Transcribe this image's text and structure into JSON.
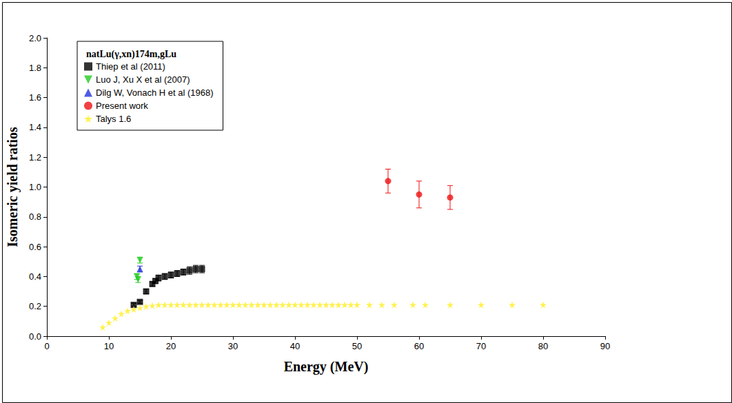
{
  "chart_data": {
    "type": "scatter",
    "legend_title": "natLu(γ,xn)174m,gLu",
    "x_label": "Energy (MeV)",
    "y_label": "Isomeric yield ratios",
    "xlim": [
      0,
      90
    ],
    "xticks": [
      0,
      10,
      20,
      30,
      40,
      50,
      60,
      70,
      80,
      90
    ],
    "ylim": [
      0,
      2
    ],
    "yticks": [
      {
        "value": 0,
        "label": "0.0"
      },
      {
        "value": 0.2,
        "label": "0.2"
      },
      {
        "value": 0.4,
        "label": "0.4"
      },
      {
        "value": 0.6,
        "label": "0.6"
      },
      {
        "value": 0.8,
        "label": "0.8"
      },
      {
        "value": 1,
        "label": "1.0"
      },
      {
        "value": 1.2,
        "label": "1.2"
      },
      {
        "value": 1.4,
        "label": "1.4"
      },
      {
        "value": 1.6,
        "label": "1.6"
      },
      {
        "value": 1.8,
        "label": "1.8"
      },
      {
        "value": 2,
        "label": "2.0"
      }
    ],
    "grid": false,
    "legend": "upper left",
    "series": [
      {
        "name": "Thiep et al (2011)",
        "color": "#000000",
        "marker": "square",
        "x": [
          14,
          15,
          16,
          17,
          17.5,
          18,
          19,
          20,
          21,
          22,
          23,
          24,
          25
        ],
        "values": [
          0.21,
          0.23,
          0.3,
          0.35,
          0.37,
          0.39,
          0.4,
          0.41,
          0.42,
          0.43,
          0.44,
          0.45,
          0.45
        ],
        "errors": [
          0.01,
          0.01,
          0.015,
          0.015,
          0.015,
          0.02,
          0.02,
          0.02,
          0.02,
          0.02,
          0.025,
          0.025,
          0.025
        ]
      },
      {
        "name": "Luo J, Xu X et al (2007)",
        "color": "#22cc22",
        "marker": "triangle-down",
        "x": [
          14.5,
          14.7,
          15.0
        ],
        "values": [
          0.4,
          0.38,
          0.51
        ],
        "errors": [
          0.02,
          0.02,
          0.02
        ]
      },
      {
        "name": "Dilg W, Vonach H et al (1968)",
        "color": "#2233dd",
        "marker": "triangle",
        "x": [
          15.0
        ],
        "values": [
          0.45
        ],
        "errors": [
          0.02
        ]
      },
      {
        "name": "Present work",
        "color": "#ee1111",
        "marker": "circle",
        "x": [
          55,
          60,
          65
        ],
        "values": [
          1.04,
          0.95,
          0.93
        ],
        "errors": [
          0.08,
          0.09,
          0.08
        ]
      },
      {
        "name": "Talys 1.6",
        "color": "#ffee22",
        "marker": "star",
        "x": [
          9,
          10,
          11,
          12,
          13,
          14,
          15,
          16,
          17,
          18,
          19,
          20,
          21,
          22,
          23,
          24,
          25,
          26,
          27,
          28,
          29,
          30,
          31,
          32,
          33,
          34,
          35,
          36,
          37,
          38,
          39,
          40,
          41,
          42,
          43,
          44,
          45,
          46,
          47,
          48,
          49,
          50,
          52,
          54,
          56,
          59,
          61,
          65,
          70,
          75,
          80
        ],
        "values": [
          0.06,
          0.09,
          0.12,
          0.15,
          0.17,
          0.18,
          0.19,
          0.2,
          0.205,
          0.21,
          0.21,
          0.21,
          0.21,
          0.21,
          0.21,
          0.21,
          0.21,
          0.21,
          0.21,
          0.21,
          0.21,
          0.21,
          0.21,
          0.21,
          0.21,
          0.21,
          0.21,
          0.21,
          0.21,
          0.21,
          0.21,
          0.21,
          0.21,
          0.21,
          0.21,
          0.21,
          0.21,
          0.21,
          0.21,
          0.21,
          0.21,
          0.21,
          0.21,
          0.21,
          0.21,
          0.21,
          0.21,
          0.21,
          0.21,
          0.21,
          0.21
        ]
      }
    ]
  }
}
